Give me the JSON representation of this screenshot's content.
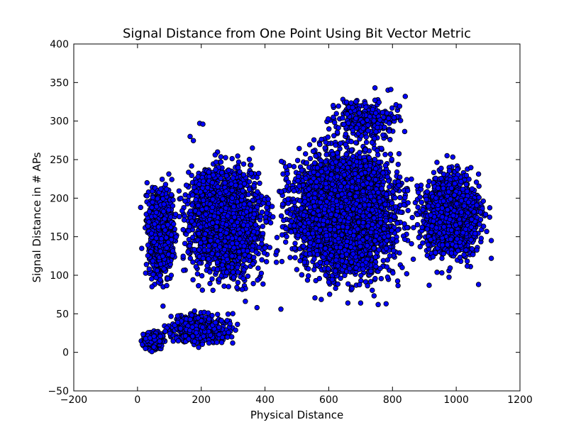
{
  "chart_data": {
    "type": "scatter",
    "title": "Signal Distance from One Point Using Bit Vector Metric",
    "xlabel": "Physical Distance",
    "ylabel": "Signal Distance in # APs",
    "xlim": [
      -200,
      1200
    ],
    "ylim": [
      -50,
      400
    ],
    "xticks": [
      -200,
      0,
      200,
      400,
      600,
      800,
      1000,
      1200
    ],
    "yticks": [
      -50,
      0,
      50,
      100,
      150,
      200,
      250,
      300,
      350,
      400
    ],
    "grid": false,
    "marker_color": "#0000ff",
    "marker_edge_color": "#000000",
    "approx_point_count": 9500,
    "density_clusters": [
      {
        "x_range": [
          0,
          100
        ],
        "y_range": [
          0,
          30
        ],
        "weight": 0.03
      },
      {
        "x_range": [
          50,
          330
        ],
        "y_range": [
          0,
          60
        ],
        "weight": 0.05
      },
      {
        "x_range": [
          10,
          130
        ],
        "y_range": [
          70,
          240
        ],
        "weight": 0.1
      },
      {
        "x_range": [
          100,
          450
        ],
        "y_range": [
          60,
          280
        ],
        "weight": 0.22
      },
      {
        "x_range": [
          400,
          900
        ],
        "y_range": [
          60,
          300
        ],
        "weight": 0.42
      },
      {
        "x_range": [
          850,
          1120
        ],
        "y_range": [
          90,
          265
        ],
        "weight": 0.15
      },
      {
        "x_range": [
          550,
          880
        ],
        "y_range": [
          260,
          345
        ],
        "weight": 0.03
      }
    ],
    "notable_points": [
      {
        "x": 745,
        "y": 343
      },
      {
        "x": 795,
        "y": 341
      },
      {
        "x": 840,
        "y": 332
      },
      {
        "x": 745,
        "y": 327
      },
      {
        "x": 195,
        "y": 297
      },
      {
        "x": 205,
        "y": 296
      },
      {
        "x": 165,
        "y": 280
      },
      {
        "x": 1070,
        "y": 88
      },
      {
        "x": 915,
        "y": 87
      },
      {
        "x": 1110,
        "y": 145
      },
      {
        "x": 1110,
        "y": 122
      },
      {
        "x": 660,
        "y": 64
      },
      {
        "x": 700,
        "y": 64
      },
      {
        "x": 755,
        "y": 62
      },
      {
        "x": 780,
        "y": 63
      },
      {
        "x": 375,
        "y": 58
      },
      {
        "x": 450,
        "y": 56
      },
      {
        "x": 80,
        "y": 60
      },
      {
        "x": 10,
        "y": 188
      },
      {
        "x": 30,
        "y": 220
      },
      {
        "x": 25,
        "y": 5
      },
      {
        "x": 45,
        "y": 1
      }
    ]
  }
}
